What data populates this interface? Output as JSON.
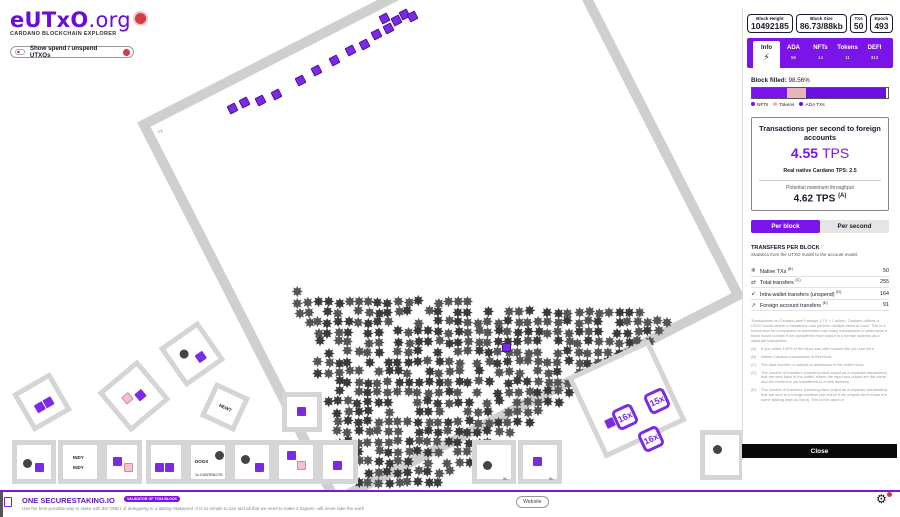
{
  "brand": {
    "logo_main": "eUTxO",
    "logo_suffix": ".org",
    "tagline": "CARDANO BLOCKCHAIN EXPLORER"
  },
  "spend_toggle": {
    "label": "Show spend / unspend UTXOs"
  },
  "canvas": {
    "block_tag": "TX",
    "small_block_labels": [
      "INDY",
      "INDY",
      "DOGS",
      "INDY",
      "NEWT"
    ],
    "contracts_caption": "1x CONTRACTS",
    "nft_badges": [
      "16x",
      "16x",
      "15x"
    ],
    "xl_tag": "XL",
    "chip_mark": "A"
  },
  "stats": [
    {
      "key": "Block Height",
      "value": "10492185"
    },
    {
      "key": "Block Size",
      "value": "86.73/88kb"
    },
    {
      "key": "TXs",
      "value": "50"
    },
    {
      "key": "Epoch",
      "value": "493"
    }
  ],
  "tabs": [
    {
      "label": "Info",
      "count": "",
      "active": true
    },
    {
      "label": "ADA",
      "count": "56"
    },
    {
      "label": "NFTs",
      "count": "14"
    },
    {
      "label": "Tokens",
      "count": "11"
    },
    {
      "label": "DEFI",
      "count": "313"
    }
  ],
  "block_filled": {
    "label": "Block filled:",
    "percent_text": "98.56%",
    "segments": [
      {
        "name": "NFTs",
        "fraction": 0.26,
        "color": "#7b14e8"
      },
      {
        "name": "Tokens",
        "fraction": 0.14,
        "color": "#e8b4b8"
      },
      {
        "name": "ADA TXs",
        "fraction": 0.5856,
        "color": "#6b0fe0"
      }
    ],
    "legend": [
      "NFTs",
      "Tokens",
      "ADA TXs"
    ]
  },
  "tps": {
    "title": "Transactions per second to foreign accounts",
    "value": "4.55",
    "unit": "TPS",
    "native_label": "Real native Cardano TPS:",
    "native_value": "2.5",
    "potential_label": "Potential maximum throughput",
    "potential_value": "4.62 TPS",
    "potential_sup": "(A)"
  },
  "mode": {
    "per_block": "Per block",
    "per_second": "Per second"
  },
  "transfers": {
    "title": "TRANSFERS PER BLOCK",
    "subtitle": "Statistics from the UTXO model to the account model.",
    "rows": [
      {
        "label": "Native TXs",
        "sup": "(B)",
        "value": "50",
        "icon": "❄"
      },
      {
        "label": "Total transfers",
        "sup": "(C)",
        "value": "255",
        "icon": "⇄"
      },
      {
        "label": "Intra-wallet transfers (unspend)",
        "sup": "(D)",
        "value": "164",
        "icon": "↙"
      },
      {
        "label": "Foreign account transfers",
        "sup": "(E)",
        "value": "91",
        "icon": "↗"
      }
    ]
  },
  "notes": {
    "intro": "Transactions on Cardano aren't always 1 TX = 1 action. Cardano utilizes a UTXO model where a transaction can perform multiple tasks at once. This is a conversion for comparison to determine how many transactions to addresses a block would contain if we considered each output to a foreign address as a separate transaction.",
    "footnotes": [
      {
        "key": "(A)",
        "text": "If you utilize 100% of the block size with content like you see here"
      },
      {
        "key": "(B)",
        "text": "Native Cardano transactions in this block"
      },
      {
        "key": "(C)",
        "text": "The total number of outputs to addresses in the entire block"
      },
      {
        "key": "(D)",
        "text": "The number of transfers (counting each output as a separate transaction) that are sent back to the wallet, where the input and output are the same, and the content is not transferred to a new address."
      },
      {
        "key": "(E)",
        "text": "The number of transfers (counting each output as a separate transaction) that are sent to a foreign address (we check if the outputs don't share the same staking keys as input). This is the count of"
      }
    ]
  },
  "close_label": "Close",
  "ad": {
    "title": "ONE SECURESTAKING.IO",
    "tag": "VALIDATOR OF TXS3 BLOCK",
    "text": "Use the best possible way to stake with the ONE1 of delegating to a lasting Stakepool. It is so simple to use and all that we need to make it happen, will never take the work",
    "site_button": "Website"
  }
}
